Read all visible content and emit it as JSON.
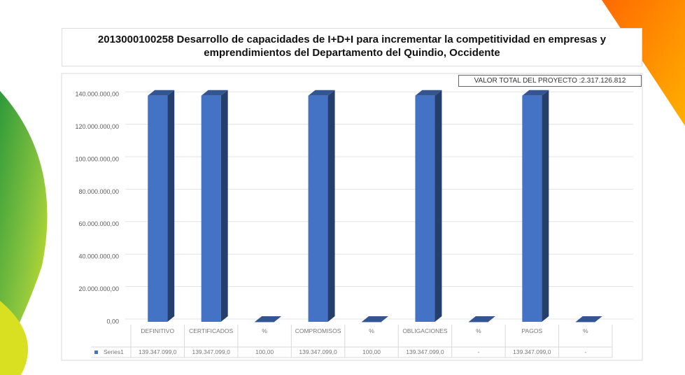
{
  "chart_data": {
    "type": "bar3d",
    "title": "2013000100258  Desarrollo de capacidades de I+D+I para incrementar la competitividad en empresas y emprendimientos del Departamento del Quindio, Occidente",
    "annotation": "VALOR TOTAL DEL PROYECTO :2.317.126.812",
    "categories": [
      "DEFINITIVO",
      "CERTIFICADOS",
      "%",
      "COMPROMISOS",
      "%",
      "OBLIGACIONES",
      "%",
      "PAGOS",
      "%"
    ],
    "series": [
      {
        "name": "Series1",
        "color": "#4472c4",
        "values": [
          139347099,
          139347099,
          100,
          139347099,
          100,
          139347099,
          0,
          139347099,
          0
        ],
        "value_labels": [
          "139.347.099,0",
          "139.347.099,0",
          "100,00",
          "139.347.099,0",
          "100,00",
          "139.347.099,0",
          "-",
          "139.347.099,0",
          "-"
        ]
      }
    ],
    "ylim": [
      0,
      150000000
    ],
    "yticks": [
      {
        "value": 0,
        "label": "0,00"
      },
      {
        "value": 20000000,
        "label": "20.000.000,00"
      },
      {
        "value": 40000000,
        "label": "40.000.000,00"
      },
      {
        "value": 60000000,
        "label": "60.000.000,00"
      },
      {
        "value": 80000000,
        "label": "80.000.000,00"
      },
      {
        "value": 100000000,
        "label": "100.000.000,00"
      },
      {
        "value": 120000000,
        "label": "120.000.000,00"
      },
      {
        "value": 140000000,
        "label": "140.000.000,00"
      }
    ],
    "grid": true
  }
}
